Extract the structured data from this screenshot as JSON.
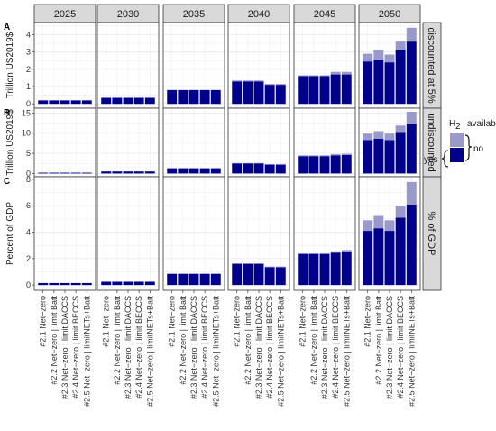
{
  "chart_data": {
    "type": "bar",
    "stacked": true,
    "facet_columns": [
      "2025",
      "2030",
      "2035",
      "2040",
      "2045",
      "2050"
    ],
    "categories": [
      "#2.1 Net−zero",
      "#2.2 Net−zero | limit Batt",
      "#2.3 Net−zero | limit DACCS",
      "#2.4 Net−zero | limit BECCS",
      "#2.5 Net−zero | limitNETs+Batt"
    ],
    "legend": {
      "title_prefix": "H",
      "title_sub": "2",
      "title_word": "available",
      "placement": "right",
      "entries": [
        {
          "label": "no",
          "color": "#9999cc"
        },
        {
          "label": "yes",
          "color": "#00008b"
        }
      ]
    },
    "rows": [
      {
        "letter": "A",
        "ylabel": "Trillion US2019$",
        "strip": "discounted at 5%",
        "ylim": [
          -0.25,
          4.7
        ],
        "yticks": [
          0,
          1,
          2,
          3,
          4
        ],
        "series": [
          {
            "name": "yes",
            "values": [
              [
                0.2,
                0.2,
                0.2,
                0.2,
                0.2
              ],
              [
                0.35,
                0.35,
                0.35,
                0.35,
                0.35
              ],
              [
                0.8,
                0.8,
                0.8,
                0.8,
                0.8
              ],
              [
                1.3,
                1.3,
                1.3,
                1.1,
                1.1
              ],
              [
                1.6,
                1.6,
                1.6,
                1.7,
                1.7
              ],
              [
                2.45,
                2.55,
                2.4,
                3.1,
                3.6
              ]
            ]
          },
          {
            "name": "no",
            "values": [
              [
                0,
                0,
                0,
                0,
                0
              ],
              [
                0,
                0,
                0,
                0,
                0
              ],
              [
                0,
                0,
                0,
                0,
                0
              ],
              [
                0.05,
                0.05,
                0.05,
                0.05,
                0.05
              ],
              [
                0.05,
                0.05,
                0.05,
                0.15,
                0.15
              ],
              [
                0.45,
                0.55,
                0.45,
                0.5,
                0.8
              ]
            ]
          }
        ]
      },
      {
        "letter": "B",
        "ylabel": "Trillion US2019$",
        "strip": "undiscounted",
        "ylim": [
          -0.8,
          16.2
        ],
        "yticks": [
          0,
          5,
          10,
          15
        ],
        "series": [
          {
            "name": "yes",
            "values": [
              [
                0.2,
                0.2,
                0.2,
                0.2,
                0.2
              ],
              [
                0.5,
                0.5,
                0.5,
                0.5,
                0.5
              ],
              [
                1.3,
                1.3,
                1.3,
                1.3,
                1.3
              ],
              [
                2.5,
                2.5,
                2.5,
                2.2,
                2.2
              ],
              [
                4.3,
                4.3,
                4.3,
                4.5,
                4.6
              ],
              [
                8.3,
                8.6,
                8.3,
                10.3,
                12.3
              ]
            ]
          },
          {
            "name": "no",
            "values": [
              [
                0,
                0,
                0,
                0,
                0
              ],
              [
                0,
                0,
                0,
                0,
                0
              ],
              [
                0,
                0,
                0,
                0,
                0
              ],
              [
                0.1,
                0.1,
                0.1,
                0.1,
                0.1
              ],
              [
                0.2,
                0.2,
                0.2,
                0.3,
                0.3
              ],
              [
                1.6,
                1.9,
                1.6,
                1.6,
                3.0
              ]
            ]
          }
        ]
      },
      {
        "letter": "C",
        "ylabel": "Percent of GDP",
        "strip": "% of GDP",
        "ylim": [
          -0.4,
          8.2
        ],
        "yticks": [
          0,
          2,
          4,
          6,
          8
        ],
        "series": [
          {
            "name": "yes",
            "values": [
              [
                0.15,
                0.15,
                0.15,
                0.15,
                0.15
              ],
              [
                0.25,
                0.25,
                0.25,
                0.25,
                0.25
              ],
              [
                0.85,
                0.85,
                0.85,
                0.85,
                0.85
              ],
              [
                1.6,
                1.6,
                1.6,
                1.35,
                1.35
              ],
              [
                2.35,
                2.35,
                2.35,
                2.45,
                2.55
              ],
              [
                4.1,
                4.3,
                4.1,
                5.1,
                6.1
              ]
            ]
          },
          {
            "name": "no",
            "values": [
              [
                0,
                0,
                0,
                0,
                0
              ],
              [
                0,
                0,
                0,
                0,
                0
              ],
              [
                0,
                0,
                0,
                0,
                0
              ],
              [
                0.05,
                0.05,
                0.05,
                0.05,
                0.05
              ],
              [
                0.05,
                0.05,
                0.05,
                0.1,
                0.1
              ],
              [
                0.8,
                1.0,
                0.8,
                0.9,
                1.7
              ]
            ]
          }
        ]
      }
    ]
  }
}
